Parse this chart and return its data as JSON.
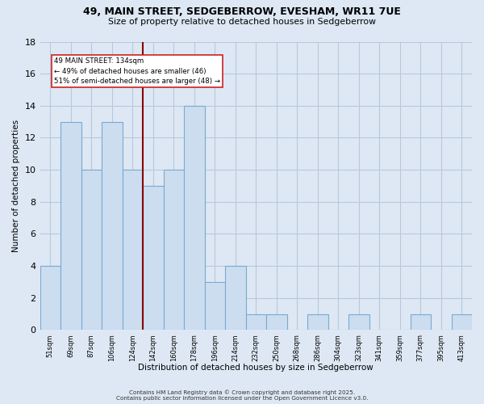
{
  "title": "49, MAIN STREET, SEDGEBERROW, EVESHAM, WR11 7UE",
  "subtitle": "Size of property relative to detached houses in Sedgeberrow",
  "xlabel": "Distribution of detached houses by size in Sedgeberrow",
  "ylabel": "Number of detached properties",
  "bar_color": "#ccddf0",
  "bar_edge_color": "#7aaad0",
  "background_color": "#dde8f4",
  "grid_color": "#f0f4f8",
  "counts": [
    4,
    13,
    10,
    13,
    10,
    9,
    10,
    14,
    3,
    4,
    1,
    1,
    0,
    1,
    0,
    1,
    0,
    0,
    1,
    0,
    1
  ],
  "tick_labels": [
    "51sqm",
    "69sqm",
    "87sqm",
    "106sqm",
    "124sqm",
    "142sqm",
    "160sqm",
    "178sqm",
    "196sqm",
    "214sqm",
    "232sqm",
    "250sqm",
    "268sqm",
    "286sqm",
    "304sqm",
    "323sqm",
    "341sqm",
    "359sqm",
    "377sqm",
    "395sqm",
    "413sqm"
  ],
  "num_bars": 21,
  "marker_bin": 5,
  "marker_label": "49 MAIN STREET: 134sqm",
  "annotation_line1": "← 49% of detached houses are smaller (46)",
  "annotation_line2": "51% of semi-detached houses are larger (48) →",
  "annotation_box_color": "#ffffff",
  "marker_line_color": "#8b0000",
  "ylim": [
    0,
    18
  ],
  "yticks": [
    0,
    2,
    4,
    6,
    8,
    10,
    12,
    14,
    16,
    18
  ],
  "footer1": "Contains HM Land Registry data © Crown copyright and database right 2025.",
  "footer2": "Contains public sector information licensed under the Open Government Licence v3.0."
}
